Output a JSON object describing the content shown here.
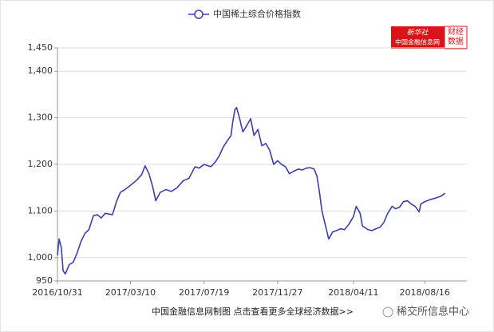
{
  "chart_data": {
    "type": "line",
    "series": [
      {
        "name": "中国稀土综合价格指数",
        "color": "#3b3fae",
        "x": [
          "2016/10/31",
          "2016/11/03",
          "2016/11/07",
          "2016/11/10",
          "2016/11/14",
          "2016/11/21",
          "2016/11/28",
          "2016/12/05",
          "2016/12/12",
          "2016/12/19",
          "2016/12/26",
          "2017/01/03",
          "2017/01/10",
          "2017/01/17",
          "2017/01/24",
          "2017/02/06",
          "2017/02/13",
          "2017/02/20",
          "2017/02/27",
          "2017/03/10",
          "2017/03/20",
          "2017/03/30",
          "2017/04/05",
          "2017/04/12",
          "2017/04/19",
          "2017/04/24",
          "2017/05/02",
          "2017/05/12",
          "2017/05/22",
          "2017/06/01",
          "2017/06/12",
          "2017/06/22",
          "2017/07/03",
          "2017/07/10",
          "2017/07/19",
          "2017/07/31",
          "2017/08/08",
          "2017/08/15",
          "2017/08/22",
          "2017/08/29",
          "2017/09/05",
          "2017/09/08",
          "2017/09/12",
          "2017/09/15",
          "2017/09/20",
          "2017/09/26",
          "2017/09/29",
          "2017/10/10",
          "2017/10/16",
          "2017/10/23",
          "2017/10/30",
          "2017/11/06",
          "2017/11/13",
          "2017/11/20",
          "2017/11/27",
          "2017/12/04",
          "2017/12/11",
          "2017/12/18",
          "2017/12/25",
          "2018/01/03",
          "2018/01/10",
          "2018/01/17",
          "2018/01/24",
          "2018/01/31",
          "2018/02/05",
          "2018/02/09",
          "2018/02/14",
          "2018/02/26",
          "2018/03/05",
          "2018/03/12",
          "2018/03/19",
          "2018/03/26",
          "2018/04/02",
          "2018/04/11",
          "2018/04/16",
          "2018/04/23",
          "2018/04/27",
          "2018/05/07",
          "2018/05/14",
          "2018/05/21",
          "2018/05/28",
          "2018/06/04",
          "2018/06/11",
          "2018/06/19",
          "2018/06/25",
          "2018/07/02",
          "2018/07/09",
          "2018/07/16",
          "2018/07/23",
          "2018/07/30",
          "2018/08/06",
          "2018/08/09",
          "2018/08/16",
          "2018/08/27",
          "2018/09/05",
          "2018/09/14",
          "2018/09/21"
        ],
        "values": [
          1005,
          1040,
          1020,
          972,
          965,
          985,
          990,
          1010,
          1035,
          1052,
          1060,
          1090,
          1092,
          1085,
          1095,
          1092,
          1120,
          1140,
          1145,
          1155,
          1165,
          1178,
          1197,
          1180,
          1150,
          1122,
          1140,
          1146,
          1142,
          1150,
          1165,
          1170,
          1195,
          1192,
          1200,
          1195,
          1205,
          1218,
          1237,
          1250,
          1262,
          1290,
          1318,
          1322,
          1300,
          1270,
          1275,
          1298,
          1262,
          1275,
          1240,
          1245,
          1230,
          1200,
          1208,
          1200,
          1195,
          1180,
          1185,
          1190,
          1188,
          1192,
          1193,
          1190,
          1175,
          1145,
          1100,
          1040,
          1055,
          1058,
          1062,
          1060,
          1070,
          1088,
          1110,
          1095,
          1068,
          1060,
          1058,
          1062,
          1065,
          1075,
          1095,
          1110,
          1105,
          1108,
          1120,
          1122,
          1115,
          1110,
          1098,
          1115,
          1120,
          1125,
          1128,
          1132,
          1138
        ]
      }
    ],
    "xlim": [
      "2016/10/31",
      "2018/10/30"
    ],
    "xticks": [
      "2016/10/31",
      "2017/03/10",
      "2017/07/19",
      "2017/11/27",
      "2018/04/11",
      "2018/08/16"
    ],
    "ylim": [
      950,
      1450
    ],
    "yticks": [
      950,
      {
        "value": 1000,
        "label": "1,000"
      },
      {
        "value": 1100,
        "label": "1,100"
      },
      {
        "value": 1200,
        "label": "1,200"
      },
      {
        "value": 1300,
        "label": "1,300"
      },
      {
        "value": 1400,
        "label": "1,400"
      },
      {
        "value": 1450,
        "label": "1,450"
      }
    ],
    "grid": true
  },
  "logo": {
    "top": "新华社",
    "bottom": "中国金融信息网",
    "side": "财经数据"
  },
  "footer": "中国金融信息网制图 点击查看更多全球经济数据>>",
  "watermark": "稀交所信息中心"
}
